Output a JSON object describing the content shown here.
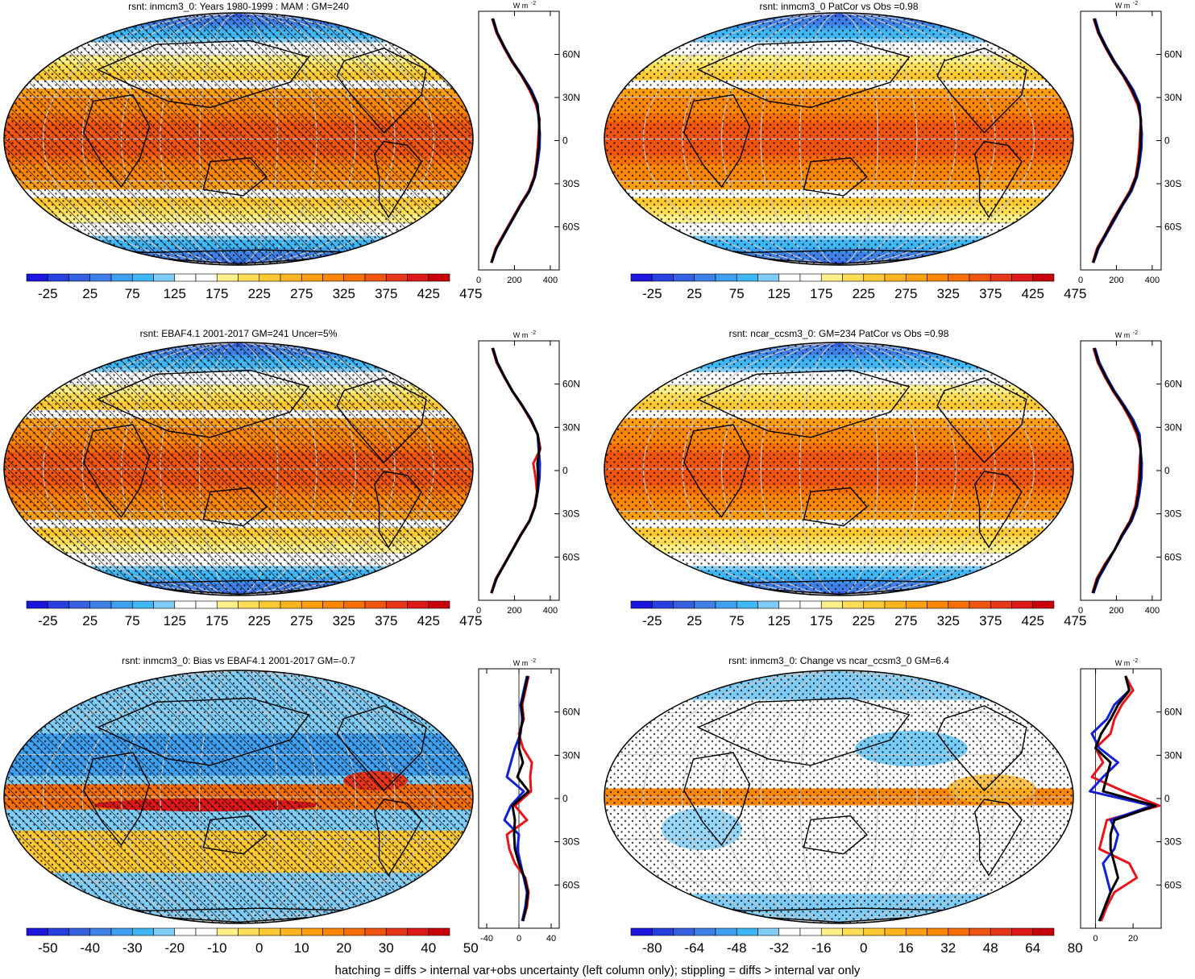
{
  "figure": {
    "footer": "hatching = diffs > internal var+obs uncertainty (left column only); stippling = diffs > internal var only",
    "profile_unit": "W m",
    "profile_unit_exp": "-2",
    "lat_ticks": [
      "60N",
      "30N",
      "0",
      "30S",
      "60S"
    ],
    "colors": {
      "line_model": "#e8141c",
      "line_obs": "#1420d8",
      "line_mean": "#000000",
      "grid": "#c8c8c8",
      "coast": "#000000"
    },
    "scale_full": {
      "labels": [
        "-25",
        "25",
        "75",
        "125",
        "175",
        "225",
        "275",
        "325",
        "375",
        "425",
        "475"
      ],
      "colors": [
        "#1d14e0",
        "#2840e0",
        "#3560e0",
        "#3f80e8",
        "#3f9ff0",
        "#3fb7f5",
        "#7fcdf7",
        "#ffffff",
        "#ffffff",
        "#fff08a",
        "#ffde55",
        "#ffc932",
        "#ffb420",
        "#ff9f10",
        "#fb8705",
        "#f76e05",
        "#f05510",
        "#e8361a",
        "#de1818",
        "#c8000c"
      ]
    },
    "scale_bias": {
      "labels": [
        "-50",
        "-40",
        "-30",
        "-20",
        "-10",
        "0",
        "10",
        "20",
        "30",
        "40",
        "50"
      ],
      "colors": [
        "#1d14e0",
        "#2840e0",
        "#3560e0",
        "#3f80e8",
        "#3f9ff0",
        "#3fb7f5",
        "#7fcdf7",
        "#ffffff",
        "#ffffff",
        "#fff08a",
        "#ffde55",
        "#ffc932",
        "#ffb420",
        "#ff9f10",
        "#fb8705",
        "#f76e05",
        "#f05510",
        "#e8361a",
        "#de1818",
        "#c8000c"
      ]
    },
    "scale_change": {
      "labels": [
        "-80",
        "-64",
        "-48",
        "-32",
        "-16",
        "0",
        "16",
        "32",
        "48",
        "64",
        "80"
      ],
      "colors": [
        "#1d14e0",
        "#2840e0",
        "#3560e0",
        "#3f80e8",
        "#3f9ff0",
        "#3fb7f5",
        "#7fcdf7",
        "#ffffff",
        "#ffffff",
        "#fff08a",
        "#ffde55",
        "#ffc932",
        "#ffb420",
        "#ff9f10",
        "#fb8705",
        "#f76e05",
        "#f05510",
        "#e8361a",
        "#de1818",
        "#c8000c"
      ]
    }
  },
  "chart_data": [
    {
      "type": "heatmap",
      "title": "rsnt: inmcm3_0: Years 1980-1999 : MAM : GM=240",
      "map_kind": "full",
      "hatched": true,
      "scale": "scale_full",
      "profile": {
        "type": "line",
        "xlim": [
          0,
          450
        ],
        "xticks": [
          "0",
          "200",
          "400"
        ],
        "lat": [
          -85,
          -75,
          -65,
          -55,
          -45,
          -35,
          -25,
          -15,
          -5,
          5,
          15,
          25,
          35,
          45,
          55,
          65,
          75,
          85
        ],
        "series": [
          {
            "role": "model",
            "values": [
              70,
              95,
              140,
              185,
              230,
              280,
              310,
              322,
              330,
              335,
              340,
              320,
              285,
              240,
              185,
              140,
              100,
              75
            ]
          },
          {
            "role": "obs",
            "values": [
              72,
              100,
              145,
              190,
              235,
              285,
              315,
              330,
              340,
              342,
              335,
              330,
              295,
              245,
              190,
              145,
              105,
              80
            ]
          },
          {
            "role": "mean",
            "values": [
              71,
              98,
              143,
              188,
              233,
              283,
              313,
              326,
              335,
              339,
              338,
              326,
              290,
              243,
              188,
              143,
              103,
              78
            ]
          }
        ]
      }
    },
    {
      "type": "heatmap",
      "title": "rsnt: inmcm3_0 PatCor vs Obs =0.98",
      "map_kind": "full",
      "hatched": false,
      "scale": "scale_full",
      "profile": {
        "type": "line",
        "xlim": [
          0,
          450
        ],
        "xticks": [
          "0",
          "200",
          "400"
        ],
        "lat": [
          -85,
          -75,
          -65,
          -55,
          -45,
          -35,
          -25,
          -15,
          -5,
          5,
          15,
          25,
          35,
          45,
          55,
          65,
          75,
          85
        ],
        "series": [
          {
            "role": "model",
            "values": [
              68,
              92,
              138,
              180,
              228,
              275,
              308,
              320,
              328,
              332,
              338,
              318,
              282,
              238,
              183,
              138,
              98,
              73
            ]
          },
          {
            "role": "obs",
            "values": [
              72,
              100,
              145,
              190,
              235,
              285,
              315,
              330,
              340,
              342,
              335,
              330,
              295,
              245,
              190,
              145,
              105,
              80
            ]
          },
          {
            "role": "mean",
            "values": [
              70,
              96,
              141,
              185,
              231,
              280,
              311,
              325,
              334,
              337,
              336,
              324,
              288,
              241,
              186,
              141,
              101,
              76
            ]
          }
        ]
      }
    },
    {
      "type": "heatmap",
      "title": "rsnt: EBAF4.1 2001-2017 GM=241 Uncer=5%",
      "map_kind": "full",
      "hatched": true,
      "scale": "scale_full",
      "profile": {
        "type": "line",
        "xlim": [
          0,
          450
        ],
        "xticks": [
          "0",
          "200",
          "400"
        ],
        "lat": [
          -85,
          -75,
          -65,
          -55,
          -45,
          -35,
          -25,
          -15,
          -5,
          5,
          15,
          25,
          35,
          45,
          55,
          65,
          75,
          85
        ],
        "series": [
          {
            "role": "model",
            "values": [
              70,
              96,
              142,
              188,
              232,
              282,
              312,
              326,
              318,
              305,
              345,
              330,
              290,
              242,
              188,
              142,
              100,
              76
            ]
          },
          {
            "role": "obs",
            "values": [
              72,
              100,
              145,
              190,
              235,
              285,
              315,
              330,
              340,
              342,
              335,
              330,
              295,
              245,
              190,
              145,
              105,
              80
            ]
          },
          {
            "role": "mean",
            "values": [
              71,
              98,
              144,
              189,
              234,
              284,
              314,
              328,
              332,
              328,
              340,
              330,
              293,
              244,
              189,
              144,
              103,
              78
            ]
          }
        ]
      }
    },
    {
      "type": "heatmap",
      "title": "rsnt: ncar_ccsm3_0: GM=234 PatCor vs Obs =0.98",
      "map_kind": "full",
      "hatched": false,
      "scale": "scale_full",
      "profile": {
        "type": "line",
        "xlim": [
          0,
          450
        ],
        "xticks": [
          "0",
          "200",
          "400"
        ],
        "lat": [
          -85,
          -75,
          -65,
          -55,
          -45,
          -35,
          -25,
          -15,
          -5,
          5,
          15,
          25,
          35,
          45,
          55,
          65,
          75,
          85
        ],
        "series": [
          {
            "role": "model",
            "values": [
              66,
              90,
              135,
              190,
              228,
              275,
              305,
              318,
              326,
              330,
              336,
              315,
              280,
              236,
              182,
              136,
              96,
              72
            ]
          },
          {
            "role": "obs",
            "values": [
              72,
              100,
              145,
              190,
              235,
              285,
              315,
              330,
              340,
              342,
              335,
              330,
              295,
              245,
              190,
              145,
              105,
              80
            ]
          },
          {
            "role": "mean",
            "values": [
              69,
              95,
              140,
              190,
              231,
              280,
              310,
              324,
              333,
              336,
              335,
              322,
              287,
              240,
              186,
              140,
              100,
              76
            ]
          }
        ]
      }
    },
    {
      "type": "heatmap",
      "title": "rsnt: inmcm3_0: Bias vs EBAF4.1 2001-2017 GM=-0.7",
      "map_kind": "bias",
      "hatched": true,
      "scale": "scale_bias",
      "profile": {
        "type": "line",
        "xlim": [
          -50,
          50
        ],
        "xticks": [
          "-40",
          "0",
          "40"
        ],
        "lat": [
          -85,
          -75,
          -65,
          -55,
          -45,
          -35,
          -25,
          -15,
          -5,
          5,
          15,
          25,
          35,
          45,
          55,
          65,
          75,
          85
        ],
        "series": [
          {
            "role": "model",
            "values": [
              5,
              10,
              12,
              8,
              -5,
              -12,
              -15,
              10,
              -5,
              15,
              14,
              16,
              5,
              0,
              6,
              4,
              8,
              12
            ]
          },
          {
            "role": "obs",
            "values": [
              4,
              8,
              10,
              6,
              2,
              -2,
              0,
              -18,
              -10,
              6,
              -15,
              -10,
              -5,
              2,
              4,
              2,
              6,
              10
            ]
          },
          {
            "role": "mean",
            "values": [
              5,
              9,
              11,
              7,
              0,
              -5,
              -6,
              -5,
              -8,
              12,
              -2,
              5,
              0,
              1,
              5,
              3,
              7,
              11
            ]
          }
        ]
      }
    },
    {
      "type": "heatmap",
      "title": "rsnt: inmcm3_0: Change vs ncar_ccsm3_0 GM=6.4",
      "map_kind": "change",
      "hatched": false,
      "scale": "scale_change",
      "profile": {
        "type": "line",
        "xlim": [
          -8,
          35
        ],
        "xticks": [
          "0",
          "20"
        ],
        "lat": [
          -85,
          -75,
          -65,
          -55,
          -45,
          -35,
          -25,
          -15,
          -5,
          5,
          15,
          25,
          35,
          45,
          55,
          65,
          75,
          85
        ],
        "series": [
          {
            "role": "model",
            "values": [
              3,
              6,
              10,
              22,
              18,
              2,
              4,
              6,
              34,
              15,
              -2,
              4,
              0,
              8,
              10,
              14,
              20,
              16
            ]
          },
          {
            "role": "obs",
            "values": [
              2,
              5,
              8,
              6,
              4,
              10,
              12,
              8,
              30,
              -3,
              4,
              12,
              2,
              -2,
              6,
              10,
              18,
              16
            ]
          },
          {
            "role": "mean",
            "values": [
              2,
              5,
              8,
              12,
              10,
              8,
              8,
              10,
              32,
              4,
              6,
              8,
              0,
              3,
              8,
              12,
              18,
              16
            ]
          }
        ]
      }
    }
  ]
}
